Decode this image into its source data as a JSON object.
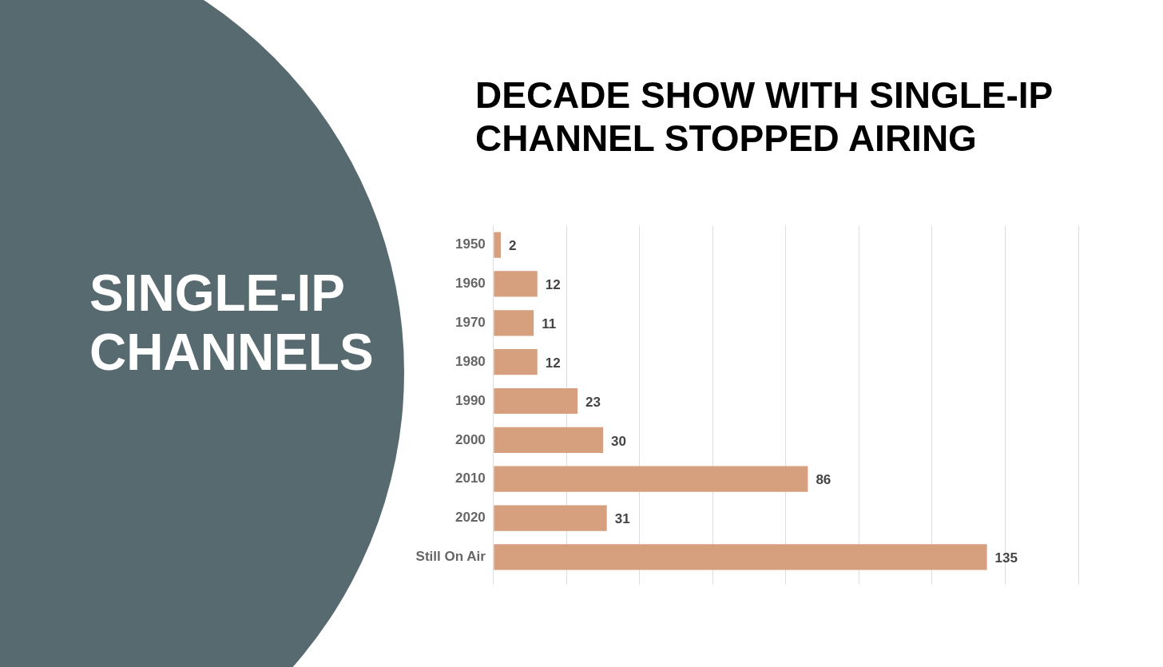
{
  "chart_data": {
    "type": "bar",
    "orientation": "horizontal",
    "title": "DECADE SHOW WITH SINGLE-IP CHANNEL STOPPED AIRING",
    "subtitle": "SINGLE-IP CHANNELS",
    "categories": [
      "1950",
      "1960",
      "1970",
      "1980",
      "1990",
      "2000",
      "2010",
      "2020",
      "Still On Air"
    ],
    "values": [
      2,
      12,
      11,
      12,
      23,
      30,
      86,
      31,
      135
    ],
    "color": "#d6a07f",
    "xlim": [
      0,
      160
    ],
    "xticks": [
      {
        "value": 0,
        "label": null
      },
      {
        "value": 20,
        "label": null
      },
      {
        "value": 40,
        "label": null
      },
      {
        "value": 60,
        "label": null
      },
      {
        "value": 80,
        "label": null
      },
      {
        "value": 100,
        "label": null
      },
      {
        "value": 120,
        "label": null
      },
      {
        "value": 140,
        "label": null
      },
      {
        "value": 160,
        "label": null
      }
    ],
    "grid": "x",
    "data_labels": true,
    "tick_labels": "y"
  }
}
